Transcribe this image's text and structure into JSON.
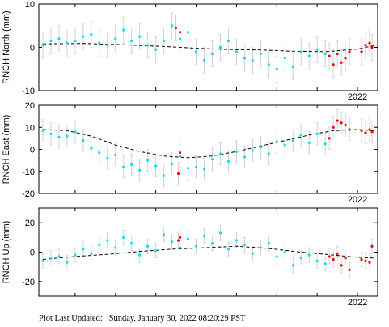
{
  "chart_data": [
    {
      "type": "scatter",
      "ylabel": "RNCH North (mm)",
      "ylim": [
        -10,
        10
      ],
      "yticks": [
        -10,
        0,
        10
      ],
      "xlim": [
        2018.05,
        2022.25
      ],
      "xtick_labels": [
        {
          "x": 2022.0,
          "label": "2022"
        }
      ],
      "xticks": [
        2018.5,
        2019.0,
        2019.5,
        2020.0,
        2020.5,
        2021.0,
        2021.5,
        2022.0
      ],
      "grid": false,
      "series": [
        {
          "role": "observations",
          "color": "#00e5ee",
          "marker": "dot",
          "error_bars": true,
          "points": [
            [
              2018.1,
              0.5
            ],
            [
              2018.2,
              1.5
            ],
            [
              2018.3,
              2.0
            ],
            [
              2018.4,
              1.0
            ],
            [
              2018.5,
              1.5
            ],
            [
              2018.6,
              2.5
            ],
            [
              2018.7,
              3.0
            ],
            [
              2018.8,
              1.0
            ],
            [
              2018.9,
              0.5
            ],
            [
              2019.0,
              2.0
            ],
            [
              2019.1,
              4.0
            ],
            [
              2019.2,
              1.5
            ],
            [
              2019.3,
              2.5
            ],
            [
              2019.4,
              0.5
            ],
            [
              2019.5,
              -0.5
            ],
            [
              2019.6,
              1.5
            ],
            [
              2019.7,
              5.0
            ],
            [
              2019.8,
              2.0
            ],
            [
              2019.9,
              3.5
            ],
            [
              2020.0,
              -1.0
            ],
            [
              2020.1,
              -3.0
            ],
            [
              2020.2,
              -1.5
            ],
            [
              2020.3,
              0.0
            ],
            [
              2020.4,
              1.5
            ],
            [
              2020.5,
              -1.0
            ],
            [
              2020.6,
              -2.5
            ],
            [
              2020.7,
              -3.0
            ],
            [
              2020.8,
              -1.5
            ],
            [
              2020.9,
              -4.0
            ],
            [
              2021.0,
              -5.0
            ],
            [
              2021.1,
              -2.5
            ],
            [
              2021.2,
              -4.5
            ],
            [
              2021.3,
              -1.0
            ],
            [
              2021.4,
              -2.0
            ],
            [
              2021.5,
              -0.5
            ],
            [
              2021.6,
              -1.5
            ]
          ]
        },
        {
          "role": "recent",
          "color": "#ff0000",
          "marker": "dot",
          "error_bars": true,
          "points": [
            [
              2019.75,
              4.5
            ],
            [
              2019.8,
              3.5
            ],
            [
              2021.65,
              -2.0
            ],
            [
              2021.7,
              -4.0
            ],
            [
              2021.75,
              -1.5
            ],
            [
              2021.8,
              -3.5
            ],
            [
              2021.85,
              -2.5
            ],
            [
              2021.9,
              -1.0
            ],
            [
              2022.05,
              -1.0
            ],
            [
              2022.1,
              0.5
            ],
            [
              2022.15,
              1.0
            ],
            [
              2022.18,
              0.0
            ]
          ]
        },
        {
          "role": "model",
          "color": "#000000",
          "style": "dashed",
          "points": [
            [
              2018.1,
              0.8
            ],
            [
              2018.6,
              0.9
            ],
            [
              2019.1,
              0.6
            ],
            [
              2019.6,
              0.2
            ],
            [
              2020.0,
              -0.2
            ],
            [
              2020.4,
              -0.5
            ],
            [
              2020.8,
              -0.6
            ],
            [
              2021.2,
              -0.9
            ],
            [
              2021.6,
              -1.0
            ],
            [
              2022.0,
              -0.4
            ],
            [
              2022.2,
              0.4
            ]
          ]
        }
      ]
    },
    {
      "type": "scatter",
      "ylabel": "RNCH East (mm)",
      "ylim": [
        -20,
        20
      ],
      "yticks": [
        -20,
        -10,
        0,
        10,
        20
      ],
      "xlim": [
        2018.05,
        2022.25
      ],
      "xtick_labels": [
        {
          "x": 2022.0,
          "label": "2022"
        }
      ],
      "xticks": [
        2018.5,
        2019.0,
        2019.5,
        2020.0,
        2020.5,
        2021.0,
        2021.5,
        2022.0
      ],
      "grid": false,
      "series": [
        {
          "role": "observations",
          "color": "#00e5ee",
          "marker": "dot",
          "error_bars": true,
          "points": [
            [
              2018.1,
              8.5
            ],
            [
              2018.2,
              7.0
            ],
            [
              2018.3,
              5.5
            ],
            [
              2018.4,
              6.0
            ],
            [
              2018.5,
              8.0
            ],
            [
              2018.6,
              4.0
            ],
            [
              2018.7,
              0.5
            ],
            [
              2018.8,
              -1.5
            ],
            [
              2018.9,
              -4.0
            ],
            [
              2019.0,
              -2.5
            ],
            [
              2019.1,
              -8.0
            ],
            [
              2019.2,
              -7.0
            ],
            [
              2019.3,
              -9.5
            ],
            [
              2019.4,
              -5.0
            ],
            [
              2019.5,
              -7.5
            ],
            [
              2019.6,
              -12.0
            ],
            [
              2019.7,
              -6.5
            ],
            [
              2019.8,
              -3.0
            ],
            [
              2019.9,
              -8.5
            ],
            [
              2020.0,
              -8.0
            ],
            [
              2020.1,
              -9.0
            ],
            [
              2020.2,
              -4.5
            ],
            [
              2020.3,
              -2.0
            ],
            [
              2020.4,
              -5.5
            ],
            [
              2020.5,
              -1.0
            ],
            [
              2020.6,
              -3.5
            ],
            [
              2020.7,
              -0.5
            ],
            [
              2020.8,
              1.0
            ],
            [
              2020.9,
              -2.0
            ],
            [
              2021.0,
              3.5
            ],
            [
              2021.1,
              2.0
            ],
            [
              2021.2,
              4.0
            ],
            [
              2021.3,
              6.5
            ],
            [
              2021.4,
              3.0
            ],
            [
              2021.5,
              7.0
            ],
            [
              2021.6,
              2.5
            ]
          ]
        },
        {
          "role": "recent",
          "color": "#ff0000",
          "marker": "dot",
          "error_bars": true,
          "points": [
            [
              2019.78,
              -11.0
            ],
            [
              2019.8,
              -1.5
            ],
            [
              2021.65,
              5.0
            ],
            [
              2021.7,
              10.0
            ],
            [
              2021.75,
              13.0
            ],
            [
              2021.8,
              12.0
            ],
            [
              2021.85,
              11.0
            ],
            [
              2021.9,
              9.0
            ],
            [
              2022.05,
              8.5
            ],
            [
              2022.1,
              7.5
            ],
            [
              2022.15,
              9.0
            ],
            [
              2022.18,
              8.0
            ]
          ]
        },
        {
          "role": "model",
          "color": "#000000",
          "style": "dashed",
          "points": [
            [
              2018.1,
              9.0
            ],
            [
              2018.4,
              8.5
            ],
            [
              2018.7,
              6.0
            ],
            [
              2019.0,
              2.0
            ],
            [
              2019.3,
              -1.0
            ],
            [
              2019.6,
              -3.0
            ],
            [
              2019.9,
              -3.8
            ],
            [
              2020.2,
              -3.0
            ],
            [
              2020.5,
              -1.0
            ],
            [
              2020.8,
              1.5
            ],
            [
              2021.1,
              4.0
            ],
            [
              2021.4,
              6.5
            ],
            [
              2021.7,
              8.5
            ],
            [
              2022.0,
              9.0
            ],
            [
              2022.2,
              8.5
            ]
          ]
        }
      ]
    },
    {
      "type": "scatter",
      "ylabel": "RNCH Up (mm)",
      "ylim": [
        -30,
        30
      ],
      "yticks": [
        -20,
        0,
        20
      ],
      "xlim": [
        2018.05,
        2022.25
      ],
      "xtick_labels": [
        {
          "x": 2022.0,
          "label": "2022"
        }
      ],
      "xticks": [
        2018.5,
        2019.0,
        2019.5,
        2020.0,
        2020.5,
        2021.0,
        2021.5,
        2022.0
      ],
      "grid": false,
      "series": [
        {
          "role": "observations",
          "color": "#00e5ee",
          "marker": "dot",
          "error_bars": true,
          "points": [
            [
              2018.1,
              -6.0
            ],
            [
              2018.2,
              -4.0
            ],
            [
              2018.3,
              -3.0
            ],
            [
              2018.4,
              -7.0
            ],
            [
              2018.5,
              -2.0
            ],
            [
              2018.6,
              2.0
            ],
            [
              2018.7,
              -1.0
            ],
            [
              2018.8,
              5.0
            ],
            [
              2018.9,
              8.0
            ],
            [
              2019.0,
              3.0
            ],
            [
              2019.1,
              10.0
            ],
            [
              2019.2,
              6.0
            ],
            [
              2019.3,
              -2.0
            ],
            [
              2019.4,
              4.0
            ],
            [
              2019.5,
              1.0
            ],
            [
              2019.6,
              12.0
            ],
            [
              2019.7,
              7.0
            ],
            [
              2019.8,
              3.0
            ],
            [
              2019.9,
              9.0
            ],
            [
              2020.0,
              4.0
            ],
            [
              2020.1,
              11.0
            ],
            [
              2020.2,
              6.0
            ],
            [
              2020.3,
              13.0
            ],
            [
              2020.4,
              2.0
            ],
            [
              2020.5,
              8.0
            ],
            [
              2020.6,
              5.0
            ],
            [
              2020.7,
              -1.0
            ],
            [
              2020.8,
              3.0
            ],
            [
              2020.9,
              6.0
            ],
            [
              2021.0,
              -3.0
            ],
            [
              2021.1,
              0.0
            ],
            [
              2021.2,
              -9.0
            ],
            [
              2021.3,
              -4.0
            ],
            [
              2021.4,
              -2.0
            ],
            [
              2021.5,
              -6.0
            ],
            [
              2021.6,
              -8.0
            ]
          ]
        },
        {
          "role": "recent",
          "color": "#ff0000",
          "marker": "dot",
          "error_bars": true,
          "points": [
            [
              2019.78,
              8.0
            ],
            [
              2019.8,
              10.0
            ],
            [
              2021.65,
              -3.0
            ],
            [
              2021.7,
              -5.0
            ],
            [
              2021.75,
              -1.0
            ],
            [
              2021.8,
              -9.0
            ],
            [
              2021.85,
              -4.0
            ],
            [
              2021.9,
              -12.0
            ],
            [
              2022.05,
              -5.0
            ],
            [
              2022.1,
              -6.0
            ],
            [
              2022.15,
              -7.0
            ],
            [
              2022.18,
              4.0
            ]
          ]
        },
        {
          "role": "model",
          "color": "#000000",
          "style": "dashed",
          "points": [
            [
              2018.1,
              -5.0
            ],
            [
              2018.5,
              -3.0
            ],
            [
              2018.9,
              -1.5
            ],
            [
              2019.3,
              0.5
            ],
            [
              2019.7,
              2.0
            ],
            [
              2020.1,
              3.0
            ],
            [
              2020.5,
              4.0
            ],
            [
              2020.9,
              2.5
            ],
            [
              2021.3,
              0.0
            ],
            [
              2021.7,
              -2.0
            ],
            [
              2022.0,
              -3.5
            ],
            [
              2022.2,
              -4.0
            ]
          ]
        }
      ]
    }
  ],
  "footer": "Plot Last Updated:   Sunday, January 30, 2022 08:20:29 PST"
}
